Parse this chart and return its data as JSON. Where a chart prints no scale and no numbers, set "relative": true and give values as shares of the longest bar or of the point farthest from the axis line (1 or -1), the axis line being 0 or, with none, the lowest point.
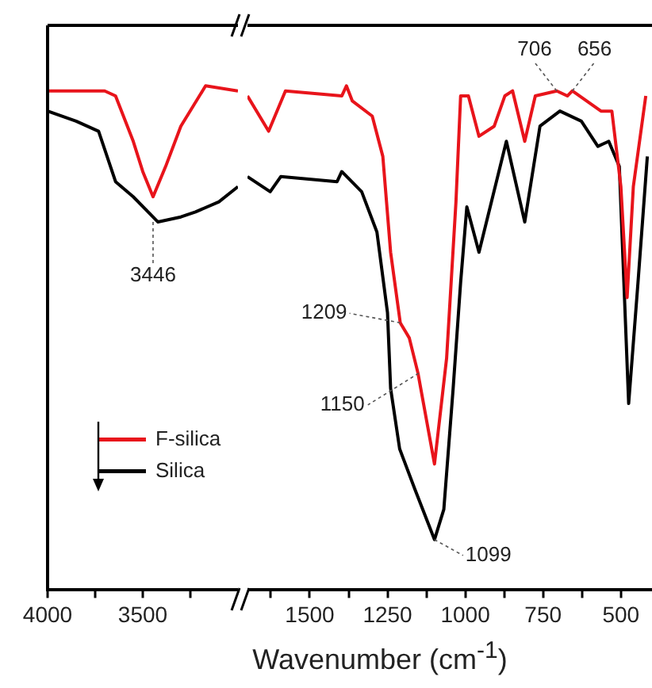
{
  "chart_data": [
    {
      "type": "line",
      "relative": true,
      "xlim": [
        4000,
        3000
      ],
      "xticks": [
        4000,
        {
          "value": 3750,
          "label": null
        },
        3500,
        {
          "value": 3250,
          "label": null
        }
      ],
      "legend": "bottom",
      "marker": "none",
      "line_style": "solid",
      "series": [
        {
          "name": "F-silica",
          "color": "#e8141b",
          "x": [
            4000,
            3700,
            3643,
            3550,
            3500,
            3446,
            3380,
            3300,
            3170,
            3000
          ],
          "values": [
            0.99,
            0.99,
            0.98,
            0.89,
            0.83,
            0.78,
            0.84,
            0.92,
            1.0,
            0.99
          ]
        },
        {
          "name": "Silica",
          "color": "#000000",
          "x": [
            4000,
            3850,
            3732,
            3643,
            3550,
            3420,
            3300,
            3223,
            3100,
            3000
          ],
          "values": [
            0.95,
            0.93,
            0.91,
            0.81,
            0.78,
            0.73,
            0.74,
            0.75,
            0.77,
            0.8
          ]
        }
      ],
      "annotations": [
        {
          "text": "3446",
          "x": 3446,
          "y": 0.73
        }
      ]
    },
    {
      "type": "line",
      "relative": true,
      "xlim": [
        1700,
        400
      ],
      "xticks": [
        {
          "value": 1625,
          "label": null
        },
        1500,
        {
          "value": 1375,
          "label": null
        },
        1250,
        {
          "value": 1125,
          "label": null
        },
        1000,
        {
          "value": 875,
          "label": null
        },
        750,
        {
          "value": 625,
          "label": null
        },
        500
      ],
      "xlabel": "Wavenumber (cm$^{-1}$)",
      "marker": "none",
      "line_style": "solid",
      "series": [
        {
          "color": "#e8141b",
          "x": [
            1700,
            1632,
            1578,
            1397,
            1382,
            1363,
            1299,
            1265,
            1240,
            1209,
            1180,
            1152,
            1099,
            1060,
            1030,
            1015,
            990,
            956,
            907,
            873,
            848,
            809,
            775,
            706,
            672,
            656,
            564,
            529,
            500,
            480,
            460,
            420
          ],
          "values": [
            0.98,
            0.91,
            0.99,
            0.98,
            1.0,
            0.97,
            0.94,
            0.86,
            0.67,
            0.53,
            0.5,
            0.43,
            0.25,
            0.46,
            0.77,
            0.98,
            0.98,
            0.9,
            0.92,
            0.98,
            0.99,
            0.89,
            0.98,
            0.99,
            0.98,
            0.99,
            0.95,
            0.95,
            0.8,
            0.58,
            0.8,
            0.98
          ]
        },
        {
          "color": "#000000",
          "x": [
            1700,
            1627,
            1593,
            1412,
            1397,
            1333,
            1284,
            1250,
            1240,
            1211,
            1162,
            1099,
            1069,
            1039,
            1015,
            995,
            956,
            868,
            809,
            760,
            696,
            627,
            574,
            539,
            505,
            475,
            445,
            415
          ],
          "values": [
            0.82,
            0.79,
            0.82,
            0.81,
            0.83,
            0.79,
            0.71,
            0.55,
            0.4,
            0.28,
            0.2,
            0.1,
            0.16,
            0.4,
            0.61,
            0.76,
            0.67,
            0.89,
            0.73,
            0.92,
            0.95,
            0.93,
            0.88,
            0.89,
            0.84,
            0.37,
            0.61,
            0.86
          ]
        }
      ],
      "annotations": [
        {
          "text": "1209",
          "x": 1209,
          "y": 0.53
        },
        {
          "text": "1150",
          "x": 1150,
          "y": 0.43
        },
        {
          "text": "1099",
          "x": 1099,
          "y": 0.1
        },
        {
          "text": "706",
          "x": 706,
          "y": 0.99
        },
        {
          "text": "656",
          "x": 656,
          "y": 0.99
        }
      ]
    }
  ]
}
